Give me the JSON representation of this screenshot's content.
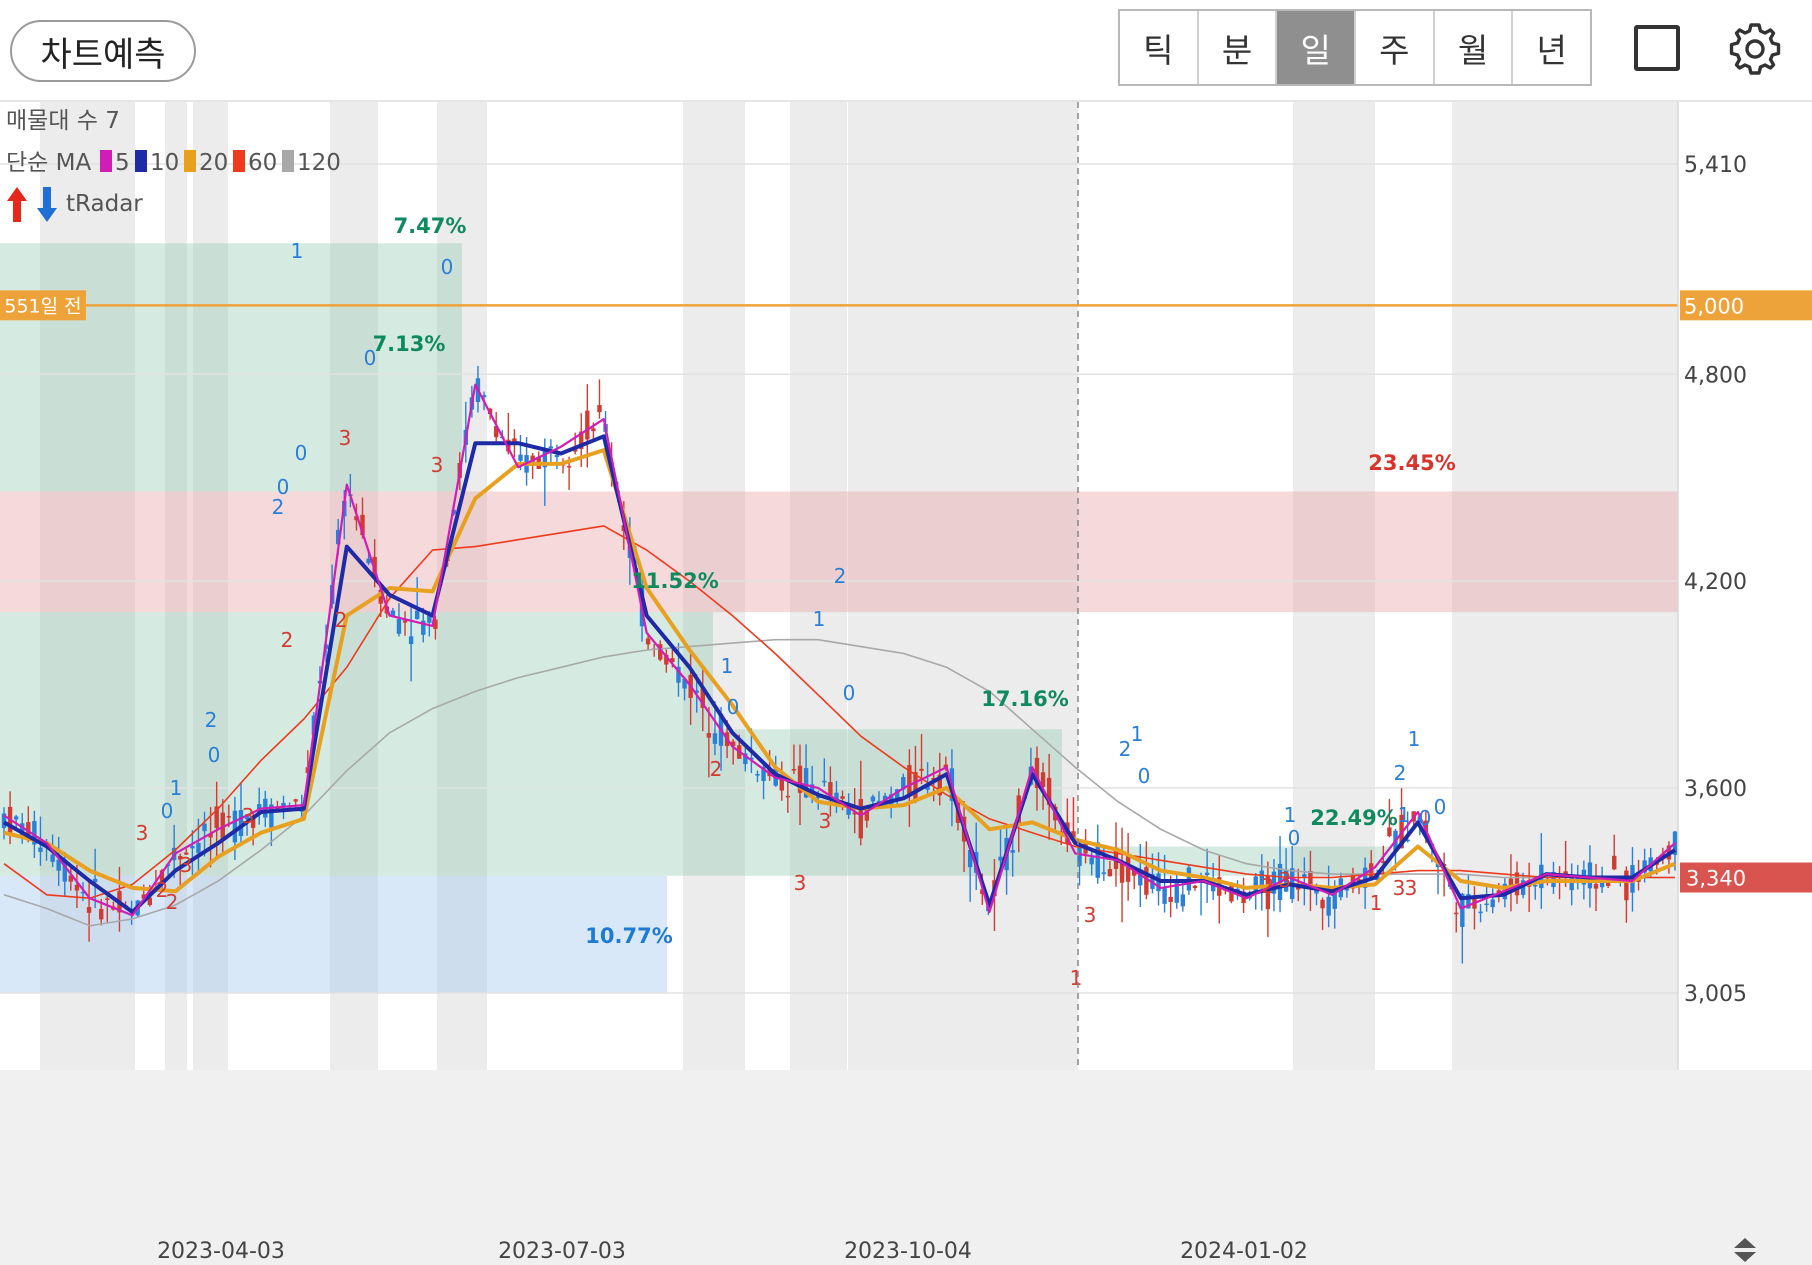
{
  "toolbar": {
    "predict_label": "차트예측",
    "periods": [
      "틱",
      "분",
      "일",
      "주",
      "월",
      "년"
    ],
    "active_period": "일"
  },
  "chart_data": {
    "type": "candlestick",
    "info_lines": {
      "volume_profile": "매물대 수 7",
      "ma_prefix": "단순 MA",
      "ma_periods": [
        {
          "period": "5",
          "color": "#d21cb6"
        },
        {
          "period": "10",
          "color": "#1e2aa6"
        },
        {
          "period": "20",
          "color": "#e8a020"
        },
        {
          "period": "60",
          "color": "#ee3b1d"
        },
        {
          "period": "120",
          "color": "#a8a8a8"
        }
      ],
      "radar_label": "tRadar"
    },
    "y_axis": {
      "ticks": [
        "5,410",
        "4,800",
        "4,200",
        "3,600",
        "3,005"
      ],
      "tick_values": [
        5410,
        4800,
        4200,
        3600,
        3005
      ],
      "range": [
        2790,
        5610
      ]
    },
    "x_axis": {
      "ticks": [
        "2023-04-03",
        "2023-07-03",
        "2023-10-04",
        "2024-01-02"
      ]
    },
    "reference_line": {
      "label": "551일 전",
      "value": 5000,
      "value_label": "5,000",
      "color": "#eea33a"
    },
    "current_price": {
      "value": 3340,
      "label": "3,340",
      "color": "#d9534f"
    },
    "volume_zones": [
      {
        "label": "7.47%",
        "low": 4800,
        "high": 5180,
        "color": "green"
      },
      {
        "label": "7.13%",
        "low": 4460,
        "high": 4800,
        "color": "green"
      },
      {
        "label": "23.45%",
        "low": 4110,
        "high": 4460,
        "color": "red"
      },
      {
        "label": "11.52%",
        "low": 3770,
        "high": 4110,
        "color": "green"
      },
      {
        "label": "17.16%",
        "low": 3430,
        "high": 3770,
        "color": "green"
      },
      {
        "label": "22.49%",
        "low": 3345,
        "high": 3430,
        "color": "green"
      },
      {
        "label": "10.77%",
        "low": 3005,
        "high": 3345,
        "color": "blue"
      }
    ],
    "moving_averages": {
      "ma5": [
        3520,
        3440,
        3280,
        3230,
        3410,
        3480,
        3540,
        3550,
        4480,
        4100,
        4070,
        4770,
        4530,
        4590,
        4670,
        4050,
        3900,
        3720,
        3630,
        3600,
        3520,
        3600,
        3660,
        3240,
        3660,
        3410,
        3390,
        3310,
        3330,
        3280,
        3340,
        3290,
        3370,
        3530,
        3250,
        3300,
        3350,
        3340,
        3330,
        3440
      ],
      "ma10": [
        3500,
        3430,
        3330,
        3240,
        3360,
        3440,
        3530,
        3540,
        4300,
        4160,
        4100,
        4600,
        4600,
        4570,
        4620,
        4100,
        3950,
        3760,
        3640,
        3580,
        3540,
        3570,
        3640,
        3260,
        3640,
        3440,
        3390,
        3330,
        3330,
        3290,
        3320,
        3300,
        3340,
        3500,
        3280,
        3290,
        3350,
        3340,
        3340,
        3420
      ],
      "ma20": [
        3470,
        3440,
        3360,
        3310,
        3300,
        3400,
        3470,
        3510,
        4100,
        4180,
        4170,
        4440,
        4540,
        4540,
        4580,
        4180,
        4000,
        3840,
        3660,
        3560,
        3540,
        3550,
        3600,
        3480,
        3500,
        3450,
        3420,
        3360,
        3340,
        3310,
        3320,
        3310,
        3320,
        3430,
        3330,
        3310,
        3330,
        3330,
        3330,
        3380
      ],
      "ma60": [
        3380,
        3290,
        3280,
        3320,
        3420,
        3540,
        3680,
        3800,
        3950,
        4150,
        4290,
        4300,
        4320,
        4340,
        4360,
        4290,
        4200,
        4100,
        3990,
        3870,
        3750,
        3660,
        3580,
        3510,
        3470,
        3430,
        3410,
        3390,
        3370,
        3350,
        3340,
        3340,
        3350,
        3360,
        3360,
        3350,
        3340,
        3340,
        3340,
        3340
      ],
      "ma120": [
        3290,
        3250,
        3200,
        3220,
        3260,
        3330,
        3420,
        3520,
        3650,
        3760,
        3830,
        3880,
        3920,
        3950,
        3980,
        4000,
        4010,
        4020,
        4030,
        4030,
        4010,
        3990,
        3950,
        3880,
        3770,
        3660,
        3560,
        3480,
        3420,
        3380,
        3360,
        3350,
        3350,
        3350,
        3350,
        3340,
        3340,
        3340,
        3340,
        3340
      ]
    },
    "signal_markers": [
      "1",
      "2",
      "3",
      "0"
    ]
  }
}
